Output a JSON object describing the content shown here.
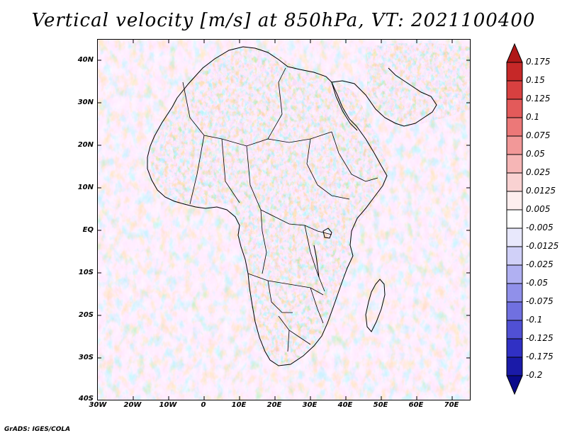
{
  "header": {
    "title": "Vertical velocity [m/s] at 850hPa, VT: 2021100400"
  },
  "footer": {
    "credit": "GrADS: IGES/COLA"
  },
  "map": {
    "lat_labels": [
      "40N",
      "30N",
      "20N",
      "10N",
      "EQ",
      "10S",
      "20S",
      "30S",
      "40S"
    ],
    "lon_labels": [
      "30W",
      "20W",
      "10W",
      "0",
      "10E",
      "20E",
      "30E",
      "40E",
      "50E",
      "60E",
      "70E"
    ],
    "lat_range": [
      -40,
      45
    ],
    "lon_range": [
      -30,
      75
    ]
  },
  "colorbar": {
    "labels": [
      "0.175",
      "0.15",
      "0.125",
      "0.1",
      "0.075",
      "0.05",
      "0.025",
      "0.0125",
      "0.005",
      "-0.005",
      "-0.0125",
      "-0.025",
      "-0.05",
      "-0.075",
      "-0.1",
      "-0.125",
      "-0.175",
      "-0.2"
    ],
    "colors": [
      "#b01818",
      "#c62828",
      "#d84040",
      "#e35a5a",
      "#ec7878",
      "#f29898",
      "#f6b6b6",
      "#f9d2d2",
      "#fdeeee",
      "#ffffff",
      "#e8e8fc",
      "#d0d0f8",
      "#b0b0f2",
      "#9090ea",
      "#7070e0",
      "#5050d4",
      "#3030c4",
      "#1a1aa8",
      "#0a0a8a"
    ]
  }
}
